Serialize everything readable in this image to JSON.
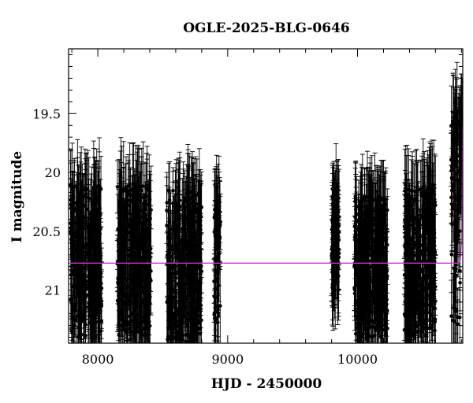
{
  "chart_data": {
    "type": "scatter",
    "title": "OGLE-2025-BLG-0646",
    "xlabel": "HJD - 2450000",
    "ylabel": "I magnitude",
    "xlim": [
      7775,
      10810
    ],
    "ylim": [
      21.45,
      18.95
    ],
    "y_inverted": true,
    "x_ticks": [
      8000,
      9000,
      10000
    ],
    "y_ticks": [
      19.5,
      20,
      20.5,
      21
    ],
    "x_tick_labels": [
      "8000",
      "9000",
      "10000"
    ],
    "y_tick_labels": [
      "19.5",
      "20",
      "20.5",
      "21"
    ],
    "grid": false,
    "legend": "none",
    "colors": {
      "points": "#000000",
      "model": "#cc33cc"
    },
    "baseline_magnitude": 20.77,
    "observing_seasons": [
      {
        "x_range": [
          7790,
          8030
        ],
        "y_range": [
          20.1,
          21.4
        ]
      },
      {
        "x_range": [
          8150,
          8410
        ],
        "y_range": [
          20.1,
          21.4
        ]
      },
      {
        "x_range": [
          8530,
          8800
        ],
        "y_range": [
          20.15,
          21.45
        ]
      },
      {
        "x_range": [
          8895,
          8945
        ],
        "y_range": [
          20.2,
          21.3
        ]
      },
      {
        "x_range": [
          9800,
          9860
        ],
        "y_range": [
          20.1,
          21.0
        ]
      },
      {
        "x_range": [
          9975,
          10230
        ],
        "y_range": [
          20.2,
          21.4
        ]
      },
      {
        "x_range": [
          10360,
          10600
        ],
        "y_range": [
          20.1,
          21.4
        ]
      },
      {
        "x_range": [
          10720,
          10810
        ],
        "y_range": [
          19.4,
          21.3
        ]
      }
    ],
    "series": [
      {
        "type": "points_with_errorbars",
        "typical_error": 0.3
      },
      {
        "type": "model_line",
        "x": [
          7775,
          10780,
          10790,
          10800,
          10805,
          10808,
          10810
        ],
        "y": [
          20.77,
          20.77,
          20.75,
          20.6,
          20.3,
          19.9,
          19.6
        ]
      }
    ]
  }
}
